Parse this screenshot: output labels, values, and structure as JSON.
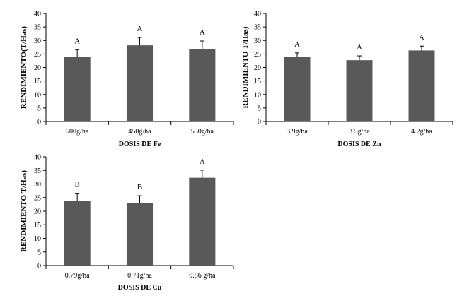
{
  "colors": {
    "bar": "#595959",
    "axis": "#000000",
    "error": "#000000"
  },
  "chart_data": [
    {
      "type": "bar",
      "title": "",
      "xlabel": "DOSIS DE Fe",
      "ylabel": "RENDIMIENTO(T/Has)",
      "ylim": [
        0,
        40
      ],
      "yticks": [
        0,
        5,
        10,
        15,
        20,
        25,
        30,
        35,
        40
      ],
      "categories": [
        "500g/ha",
        "450g/ha",
        "550g/ha"
      ],
      "values": [
        23.8,
        28.2,
        26.9
      ],
      "errors": [
        2.8,
        2.9,
        2.9
      ],
      "significance": [
        "A",
        "A",
        "A"
      ],
      "grid": false
    },
    {
      "type": "bar",
      "title": "",
      "xlabel": "DOSIS DE Zn",
      "ylabel": "RENDIMIENTO T/Has)",
      "ylim": [
        0,
        40
      ],
      "yticks": [
        0,
        5,
        10,
        15,
        20,
        25,
        30,
        35,
        40
      ],
      "categories": [
        "3.9g/ha",
        "3.5g/ha",
        "4.2g/ha"
      ],
      "values": [
        23.8,
        22.7,
        26.3
      ],
      "errors": [
        1.6,
        1.6,
        1.6
      ],
      "significance": [
        "A",
        "A",
        "A"
      ],
      "grid": false
    },
    {
      "type": "bar",
      "title": "",
      "xlabel": "DOSIS DE Cu",
      "ylabel": "RENDIMIENTO T/Has)",
      "ylim": [
        0,
        40
      ],
      "yticks": [
        0,
        5,
        10,
        15,
        20,
        25,
        30,
        35,
        40
      ],
      "categories": [
        "0.79g/ha",
        "0.71g/ha",
        "0.86 g/ha"
      ],
      "values": [
        23.8,
        23.1,
        32.3
      ],
      "errors": [
        2.8,
        2.6,
        2.8
      ],
      "significance": [
        "B",
        "B",
        "A"
      ],
      "grid": false
    }
  ]
}
